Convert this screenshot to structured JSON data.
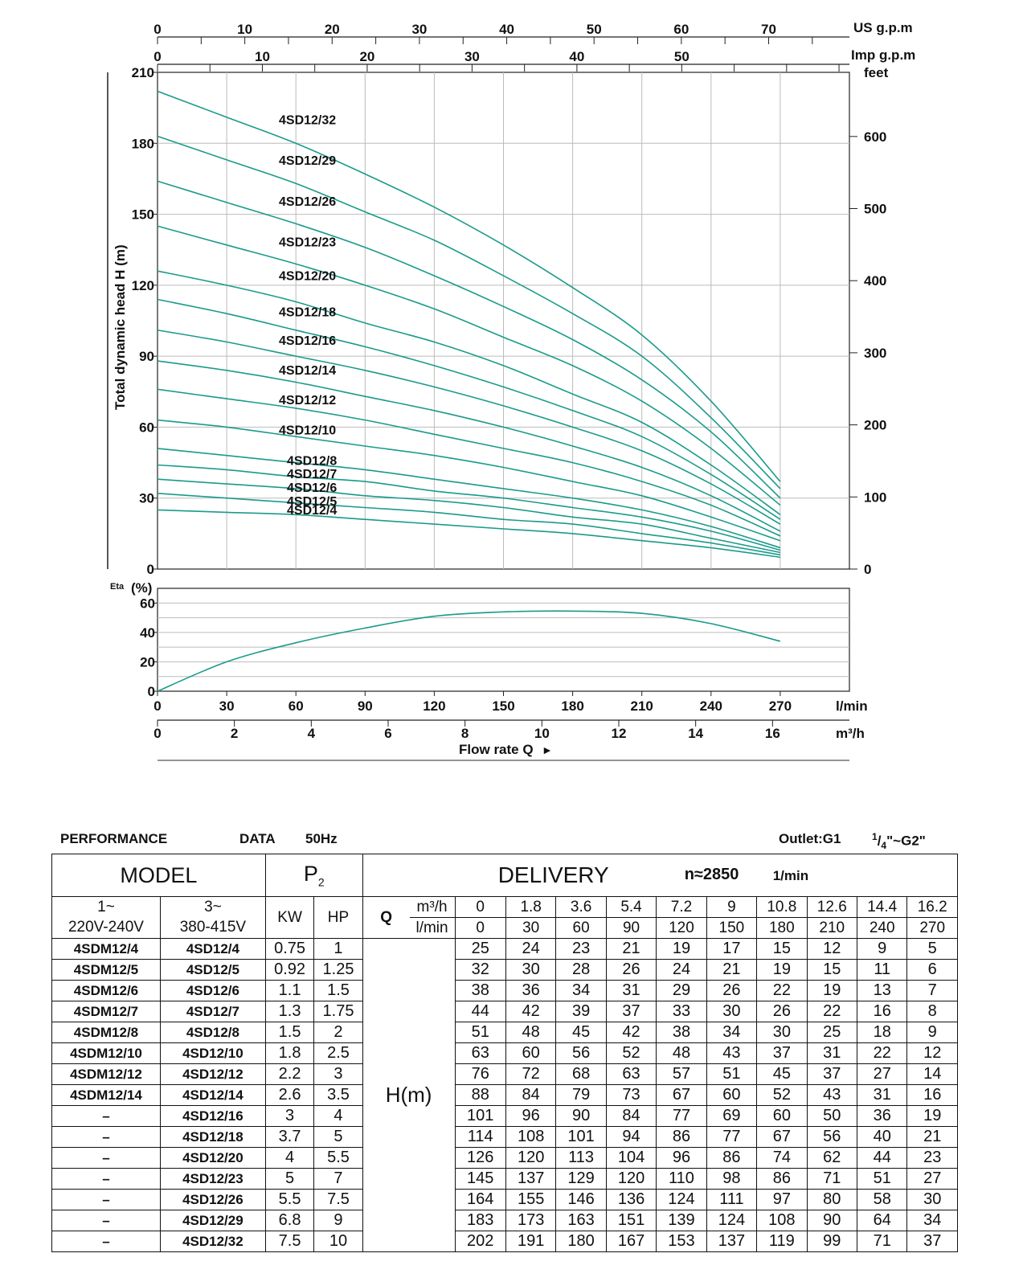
{
  "chart_data": [
    {
      "type": "line",
      "title": "",
      "xlabel": "Flow rate Q",
      "ylabel": "Total dynamic head H (m)",
      "x_unit_lmin": "l/min",
      "x_unit_m3h": "m³/h",
      "x_lmin": [
        0,
        30,
        60,
        90,
        120,
        150,
        180,
        210,
        240,
        270
      ],
      "x_ticks_lmin": [
        "0",
        "30",
        "60",
        "90",
        "120",
        "150",
        "180",
        "210",
        "240",
        "270"
      ],
      "x_ticks_m3h": [
        "0",
        "2",
        "4",
        "6",
        "8",
        "10",
        "12",
        "14",
        "16"
      ],
      "top_axis_us": {
        "label": "US g.p.m",
        "ticks": [
          "0",
          "10",
          "20",
          "30",
          "40",
          "50",
          "60",
          "70"
        ]
      },
      "top_axis_imp": {
        "label": "Imp g.p.m",
        "ticks": [
          "0",
          "10",
          "20",
          "30",
          "40",
          "50"
        ]
      },
      "y_ticks": [
        "0",
        "30",
        "60",
        "90",
        "120",
        "150",
        "180",
        "210"
      ],
      "y_right_label": "feet",
      "y_right_ticks": [
        "0",
        "100",
        "200",
        "300",
        "400",
        "500",
        "600"
      ],
      "ylim": [
        0,
        210
      ],
      "xlim": [
        0,
        300
      ],
      "grid": true,
      "line_color": "#1a9b8a",
      "series": [
        {
          "name": "4SD12/32",
          "values": [
            202,
            191,
            180,
            167,
            153,
            137,
            119,
            99,
            71,
            37
          ]
        },
        {
          "name": "4SD12/29",
          "values": [
            183,
            173,
            163,
            151,
            139,
            124,
            108,
            90,
            64,
            34
          ]
        },
        {
          "name": "4SD12/26",
          "values": [
            164,
            155,
            146,
            136,
            124,
            111,
            97,
            80,
            58,
            30
          ]
        },
        {
          "name": "4SD12/23",
          "values": [
            145,
            137,
            129,
            120,
            110,
            98,
            86,
            71,
            51,
            27
          ]
        },
        {
          "name": "4SD12/20",
          "values": [
            126,
            120,
            113,
            104,
            96,
            86,
            74,
            62,
            44,
            23
          ]
        },
        {
          "name": "4SD12/18",
          "values": [
            114,
            108,
            101,
            94,
            86,
            77,
            67,
            56,
            40,
            21
          ]
        },
        {
          "name": "4SD12/16",
          "values": [
            101,
            96,
            90,
            84,
            77,
            69,
            60,
            50,
            36,
            19
          ]
        },
        {
          "name": "4SD12/14",
          "values": [
            88,
            84,
            79,
            73,
            67,
            60,
            52,
            43,
            31,
            16
          ]
        },
        {
          "name": "4SD12/12",
          "values": [
            76,
            72,
            68,
            63,
            57,
            51,
            45,
            37,
            27,
            14
          ]
        },
        {
          "name": "4SD12/10",
          "values": [
            63,
            60,
            56,
            52,
            48,
            43,
            37,
            31,
            22,
            12
          ]
        },
        {
          "name": "4SD12/8",
          "values": [
            51,
            48,
            45,
            42,
            38,
            34,
            30,
            25,
            18,
            9
          ]
        },
        {
          "name": "4SD12/7",
          "values": [
            44,
            42,
            39,
            37,
            33,
            30,
            26,
            22,
            16,
            8
          ]
        },
        {
          "name": "4SD12/6",
          "values": [
            38,
            36,
            34,
            31,
            29,
            26,
            22,
            19,
            13,
            7
          ]
        },
        {
          "name": "4SD12/5",
          "values": [
            32,
            30,
            28,
            26,
            24,
            21,
            19,
            15,
            11,
            6
          ]
        },
        {
          "name": "4SD12/4",
          "values": [
            25,
            24,
            23,
            21,
            19,
            17,
            15,
            12,
            9,
            5
          ]
        }
      ]
    },
    {
      "type": "line",
      "title": "",
      "ylabel_small": "Eta",
      "ylabel_unit": "(%)",
      "y_ticks": [
        "0",
        "20",
        "40",
        "60"
      ],
      "ylim": [
        0,
        70
      ],
      "x_lmin": [
        0,
        30,
        60,
        90,
        120,
        150,
        180,
        210,
        240,
        270
      ],
      "series": [
        {
          "values": [
            0,
            20,
            33,
            43,
            51,
            54,
            54.5,
            53,
            46,
            34
          ]
        }
      ]
    }
  ],
  "perf": {
    "title_left": "PERFORMANCE",
    "title_mid": "DATA",
    "title_hz": "50Hz",
    "outlet": "Outlet:G1",
    "frac_num": "1",
    "frac_den": "4",
    "outlet_tail": "\"~G2\"",
    "model_label": "MODEL",
    "p2_main": "P",
    "p2_sub": "2",
    "delivery_label": "DELIVERY",
    "n_label": "n≈2850",
    "n_unit": "1/min",
    "phase1_top": "1~",
    "phase1_bottom": "220V-240V",
    "phase3_top": "3~",
    "phase3_bottom": "380-415V",
    "kw_label": "KW",
    "hp_label": "HP",
    "q_label": "Q",
    "m3h_label": "m³/h",
    "lmin_label": "l/min",
    "h_label": "H(m)",
    "q_m3h": [
      "0",
      "1.8",
      "3.6",
      "5.4",
      "7.2",
      "9",
      "10.8",
      "12.6",
      "14.4",
      "16.2"
    ],
    "q_lmin": [
      "0",
      "30",
      "60",
      "90",
      "120",
      "150",
      "180",
      "210",
      "240",
      "270"
    ],
    "rows": [
      {
        "m1": "4SDM12/4",
        "m3": "4SD12/4",
        "kw": "0.75",
        "hp": "1",
        "h": [
          "25",
          "24",
          "23",
          "21",
          "19",
          "17",
          "15",
          "12",
          "9",
          "5"
        ]
      },
      {
        "m1": "4SDM12/5",
        "m3": "4SD12/5",
        "kw": "0.92",
        "hp": "1.25",
        "h": [
          "32",
          "30",
          "28",
          "26",
          "24",
          "21",
          "19",
          "15",
          "11",
          "6"
        ]
      },
      {
        "m1": "4SDM12/6",
        "m3": "4SD12/6",
        "kw": "1.1",
        "hp": "1.5",
        "h": [
          "38",
          "36",
          "34",
          "31",
          "29",
          "26",
          "22",
          "19",
          "13",
          "7"
        ]
      },
      {
        "m1": "4SDM12/7",
        "m3": "4SD12/7",
        "kw": "1.3",
        "hp": "1.75",
        "h": [
          "44",
          "42",
          "39",
          "37",
          "33",
          "30",
          "26",
          "22",
          "16",
          "8"
        ]
      },
      {
        "m1": "4SDM12/8",
        "m3": "4SD12/8",
        "kw": "1.5",
        "hp": "2",
        "h": [
          "51",
          "48",
          "45",
          "42",
          "38",
          "34",
          "30",
          "25",
          "18",
          "9"
        ]
      },
      {
        "m1": "4SDM12/10",
        "m3": "4SD12/10",
        "kw": "1.8",
        "hp": "2.5",
        "h": [
          "63",
          "60",
          "56",
          "52",
          "48",
          "43",
          "37",
          "31",
          "22",
          "12"
        ]
      },
      {
        "m1": "4SDM12/12",
        "m3": "4SD12/12",
        "kw": "2.2",
        "hp": "3",
        "h": [
          "76",
          "72",
          "68",
          "63",
          "57",
          "51",
          "45",
          "37",
          "27",
          "14"
        ]
      },
      {
        "m1": "4SDM12/14",
        "m3": "4SD12/14",
        "kw": "2.6",
        "hp": "3.5",
        "h": [
          "88",
          "84",
          "79",
          "73",
          "67",
          "60",
          "52",
          "43",
          "31",
          "16"
        ]
      },
      {
        "m1": "–",
        "m3": "4SD12/16",
        "kw": "3",
        "hp": "4",
        "h": [
          "101",
          "96",
          "90",
          "84",
          "77",
          "69",
          "60",
          "50",
          "36",
          "19"
        ]
      },
      {
        "m1": "–",
        "m3": "4SD12/18",
        "kw": "3.7",
        "hp": "5",
        "h": [
          "114",
          "108",
          "101",
          "94",
          "86",
          "77",
          "67",
          "56",
          "40",
          "21"
        ]
      },
      {
        "m1": "–",
        "m3": "4SD12/20",
        "kw": "4",
        "hp": "5.5",
        "h": [
          "126",
          "120",
          "113",
          "104",
          "96",
          "86",
          "74",
          "62",
          "44",
          "23"
        ]
      },
      {
        "m1": "–",
        "m3": "4SD12/23",
        "kw": "5",
        "hp": "7",
        "h": [
          "145",
          "137",
          "129",
          "120",
          "110",
          "98",
          "86",
          "71",
          "51",
          "27"
        ]
      },
      {
        "m1": "–",
        "m3": "4SD12/26",
        "kw": "5.5",
        "hp": "7.5",
        "h": [
          "164",
          "155",
          "146",
          "136",
          "124",
          "111",
          "97",
          "80",
          "58",
          "30"
        ]
      },
      {
        "m1": "–",
        "m3": "4SD12/29",
        "kw": "6.8",
        "hp": "9",
        "h": [
          "183",
          "173",
          "163",
          "151",
          "139",
          "124",
          "108",
          "90",
          "64",
          "34"
        ]
      },
      {
        "m1": "–",
        "m3": "4SD12/32",
        "kw": "7.5",
        "hp": "10",
        "h": [
          "202",
          "191",
          "180",
          "167",
          "153",
          "137",
          "119",
          "99",
          "71",
          "37"
        ]
      }
    ]
  }
}
